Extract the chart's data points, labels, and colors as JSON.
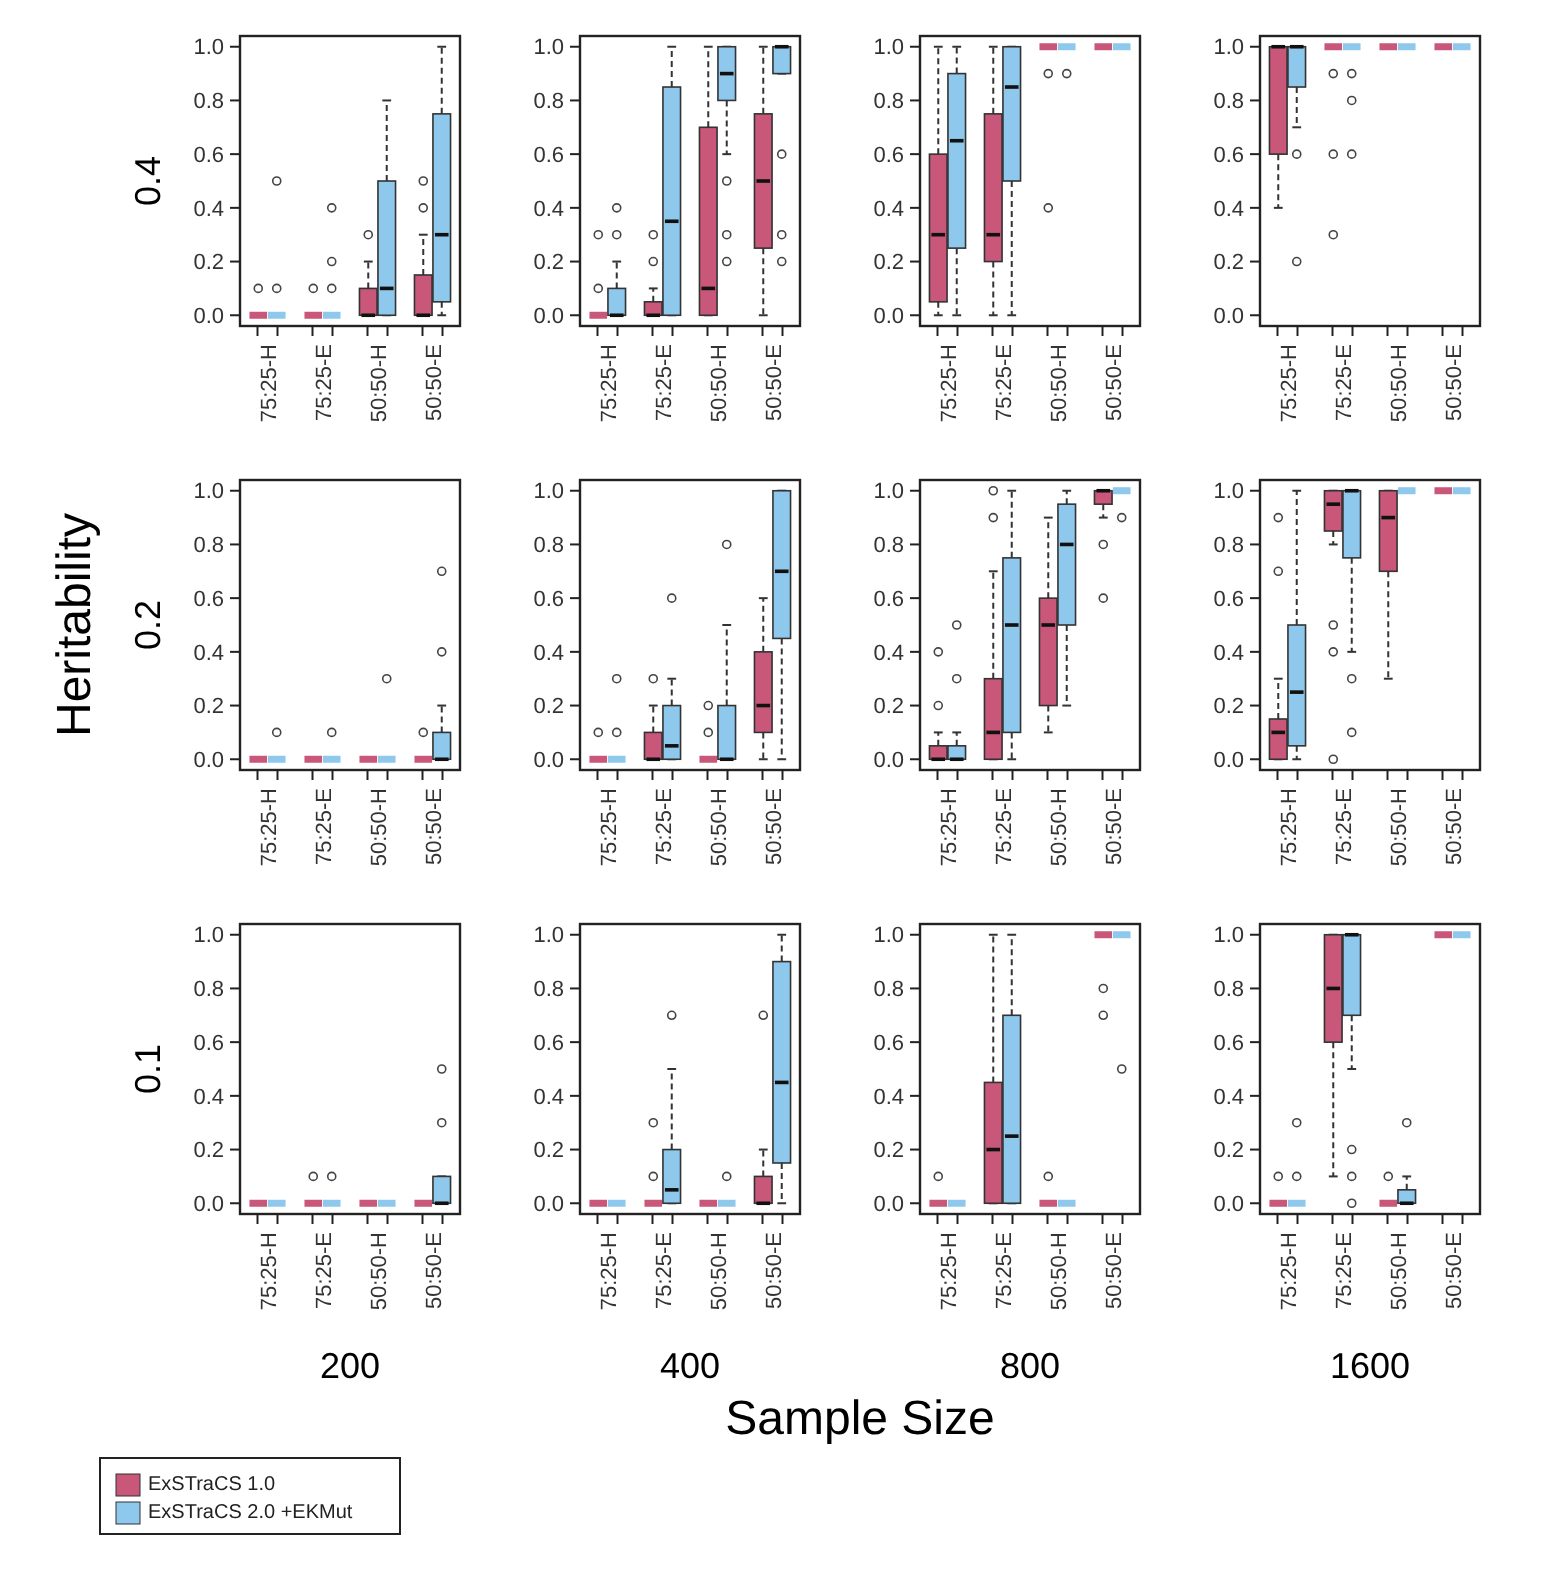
{
  "chart_data": [
    {
      "type": "box",
      "ylabel": "0.4",
      "categories": [
        "75:25-H",
        "75:25-E",
        "50:50-H",
        "50:50-E"
      ],
      "ylim": [
        -0.04,
        1.04
      ],
      "yticks": [
        {
          "value": 0,
          "label": "0.0"
        },
        {
          "value": 0.2,
          "label": "0.2"
        },
        {
          "value": 0.4,
          "label": "0.4"
        },
        {
          "value": 0.6,
          "label": "0.6"
        },
        {
          "value": 0.8,
          "label": "0.8"
        },
        {
          "value": 1,
          "label": "1.0"
        }
      ],
      "legend": false,
      "series": [
        {
          "color": "#c9577a",
          "boxes": [
            {
              "low": 0,
              "q1": 0,
              "median": 0,
              "q3": 0,
              "high": 0,
              "outliers": [
                0.1
              ]
            },
            {
              "low": 0,
              "q1": 0,
              "median": 0,
              "q3": 0,
              "high": 0,
              "outliers": [
                0.1
              ]
            },
            {
              "low": 0,
              "q1": 0,
              "median": 0,
              "q3": 0.1,
              "high": 0.2,
              "outliers": [
                0.3
              ]
            },
            {
              "low": 0,
              "q1": 0,
              "median": 0,
              "q3": 0.15,
              "high": 0.3,
              "outliers": [
                0.4,
                0.5
              ]
            }
          ]
        },
        {
          "color": "#8ec8ec",
          "boxes": [
            {
              "low": 0,
              "q1": 0,
              "median": 0,
              "q3": 0,
              "high": 0,
              "outliers": [
                0.1,
                0.5
              ]
            },
            {
              "low": 0,
              "q1": 0,
              "median": 0,
              "q3": 0,
              "high": 0,
              "outliers": [
                0.1,
                0.2,
                0.4
              ]
            },
            {
              "low": 0,
              "q1": 0,
              "median": 0.1,
              "q3": 0.5,
              "high": 0.8
            },
            {
              "low": 0,
              "q1": 0.05,
              "median": 0.3,
              "q3": 0.75,
              "high": 1.0
            }
          ]
        }
      ]
    },
    {
      "type": "box",
      "categories": [
        "75:25-H",
        "75:25-E",
        "50:50-H",
        "50:50-E"
      ],
      "ylim": [
        -0.04,
        1.04
      ],
      "yticks": [
        {
          "value": 0,
          "label": "0.0"
        },
        {
          "value": 0.2,
          "label": "0.2"
        },
        {
          "value": 0.4,
          "label": "0.4"
        },
        {
          "value": 0.6,
          "label": "0.6"
        },
        {
          "value": 0.8,
          "label": "0.8"
        },
        {
          "value": 1,
          "label": "1.0"
        }
      ],
      "legend": false,
      "series": [
        {
          "color": "#c9577a",
          "boxes": [
            {
              "low": 0,
              "q1": 0,
              "median": 0,
              "q3": 0,
              "high": 0,
              "outliers": [
                0.1,
                0.3
              ]
            },
            {
              "low": 0,
              "q1": 0,
              "median": 0,
              "q3": 0.05,
              "high": 0.1,
              "outliers": [
                0.2,
                0.3
              ]
            },
            {
              "low": 0,
              "q1": 0,
              "median": 0.1,
              "q3": 0.7,
              "high": 1.0
            },
            {
              "low": 0,
              "q1": 0.25,
              "median": 0.5,
              "q3": 0.75,
              "high": 1.0
            }
          ]
        },
        {
          "color": "#8ec8ec",
          "boxes": [
            {
              "low": 0,
              "q1": 0,
              "median": 0,
              "q3": 0.1,
              "high": 0.2,
              "outliers": [
                0.3,
                0.4
              ]
            },
            {
              "low": 0,
              "q1": 0,
              "median": 0.35,
              "q3": 0.85,
              "high": 1.0
            },
            {
              "low": 0.6,
              "q1": 0.8,
              "median": 0.9,
              "q3": 1.0,
              "high": 1.0,
              "outliers": [
                0.2,
                0.3,
                0.5
              ]
            },
            {
              "low": 0.9,
              "q1": 0.9,
              "median": 1.0,
              "q3": 1.0,
              "high": 1.0,
              "outliers": [
                0.2,
                0.3,
                0.6
              ]
            }
          ]
        }
      ]
    },
    {
      "type": "box",
      "categories": [
        "75:25-H",
        "75:25-E",
        "50:50-H",
        "50:50-E"
      ],
      "ylim": [
        -0.04,
        1.04
      ],
      "yticks": [
        {
          "value": 0,
          "label": "0.0"
        },
        {
          "value": 0.2,
          "label": "0.2"
        },
        {
          "value": 0.4,
          "label": "0.4"
        },
        {
          "value": 0.6,
          "label": "0.6"
        },
        {
          "value": 0.8,
          "label": "0.8"
        },
        {
          "value": 1,
          "label": "1.0"
        }
      ],
      "legend": false,
      "series": [
        {
          "color": "#c9577a",
          "boxes": [
            {
              "low": 0,
              "q1": 0.05,
              "median": 0.3,
              "q3": 0.6,
              "high": 1.0
            },
            {
              "low": 0,
              "q1": 0.2,
              "median": 0.3,
              "q3": 0.75,
              "high": 1.0
            },
            {
              "low": 1.0,
              "q1": 1.0,
              "median": 1.0,
              "q3": 1.0,
              "high": 1.0,
              "outliers": [
                0.4,
                0.9
              ]
            },
            {
              "low": 1.0,
              "q1": 1.0,
              "median": 1.0,
              "q3": 1.0,
              "high": 1.0
            }
          ]
        },
        {
          "color": "#8ec8ec",
          "boxes": [
            {
              "low": 0,
              "q1": 0.25,
              "median": 0.65,
              "q3": 0.9,
              "high": 1.0
            },
            {
              "low": 0,
              "q1": 0.5,
              "median": 0.85,
              "q3": 1.0,
              "high": 1.0
            },
            {
              "low": 1.0,
              "q1": 1.0,
              "median": 1.0,
              "q3": 1.0,
              "high": 1.0,
              "outliers": [
                0.9
              ]
            },
            {
              "low": 1.0,
              "q1": 1.0,
              "median": 1.0,
              "q3": 1.0,
              "high": 1.0
            }
          ]
        }
      ]
    },
    {
      "type": "box",
      "categories": [
        "75:25-H",
        "75:25-E",
        "50:50-H",
        "50:50-E"
      ],
      "ylim": [
        -0.04,
        1.04
      ],
      "yticks": [
        {
          "value": 0,
          "label": "0.0"
        },
        {
          "value": 0.2,
          "label": "0.2"
        },
        {
          "value": 0.4,
          "label": "0.4"
        },
        {
          "value": 0.6,
          "label": "0.6"
        },
        {
          "value": 0.8,
          "label": "0.8"
        },
        {
          "value": 1,
          "label": "1.0"
        }
      ],
      "legend": false,
      "series": [
        {
          "color": "#c9577a",
          "boxes": [
            {
              "low": 0.4,
              "q1": 0.6,
              "median": 1.0,
              "q3": 1.0,
              "high": 1.0
            },
            {
              "low": 1.0,
              "q1": 1.0,
              "median": 1.0,
              "q3": 1.0,
              "high": 1.0,
              "outliers": [
                0.3,
                0.6,
                0.9
              ]
            },
            {
              "low": 1.0,
              "q1": 1.0,
              "median": 1.0,
              "q3": 1.0,
              "high": 1.0
            },
            {
              "low": 1.0,
              "q1": 1.0,
              "median": 1.0,
              "q3": 1.0,
              "high": 1.0
            }
          ]
        },
        {
          "color": "#8ec8ec",
          "boxes": [
            {
              "low": 0.7,
              "q1": 0.85,
              "median": 1.0,
              "q3": 1.0,
              "high": 1.0,
              "outliers": [
                0.2,
                0.6
              ]
            },
            {
              "low": 1.0,
              "q1": 1.0,
              "median": 1.0,
              "q3": 1.0,
              "high": 1.0,
              "outliers": [
                0.6,
                0.8,
                0.9
              ]
            },
            {
              "low": 1.0,
              "q1": 1.0,
              "median": 1.0,
              "q3": 1.0,
              "high": 1.0
            },
            {
              "low": 1.0,
              "q1": 1.0,
              "median": 1.0,
              "q3": 1.0,
              "high": 1.0
            }
          ]
        }
      ]
    },
    {
      "type": "box",
      "ylabel": "0.2",
      "annotations": [
        "Heritability"
      ],
      "categories": [
        "75:25-H",
        "75:25-E",
        "50:50-H",
        "50:50-E"
      ],
      "ylim": [
        -0.04,
        1.04
      ],
      "yticks": [
        {
          "value": 0,
          "label": "0.0"
        },
        {
          "value": 0.2,
          "label": "0.2"
        },
        {
          "value": 0.4,
          "label": "0.4"
        },
        {
          "value": 0.6,
          "label": "0.6"
        },
        {
          "value": 0.8,
          "label": "0.8"
        },
        {
          "value": 1,
          "label": "1.0"
        }
      ],
      "legend": false,
      "series": [
        {
          "color": "#c9577a",
          "boxes": [
            {
              "low": 0,
              "q1": 0,
              "median": 0,
              "q3": 0,
              "high": 0
            },
            {
              "low": 0,
              "q1": 0,
              "median": 0,
              "q3": 0,
              "high": 0
            },
            {
              "low": 0,
              "q1": 0,
              "median": 0,
              "q3": 0,
              "high": 0
            },
            {
              "low": 0,
              "q1": 0,
              "median": 0,
              "q3": 0,
              "high": 0,
              "outliers": [
                0.1
              ]
            }
          ]
        },
        {
          "color": "#8ec8ec",
          "boxes": [
            {
              "low": 0,
              "q1": 0,
              "median": 0,
              "q3": 0,
              "high": 0,
              "outliers": [
                0.1
              ]
            },
            {
              "low": 0,
              "q1": 0,
              "median": 0,
              "q3": 0,
              "high": 0,
              "outliers": [
                0.1
              ]
            },
            {
              "low": 0,
              "q1": 0,
              "median": 0,
              "q3": 0,
              "high": 0,
              "outliers": [
                0.3
              ]
            },
            {
              "low": 0,
              "q1": 0,
              "median": 0,
              "q3": 0.1,
              "high": 0.2,
              "outliers": [
                0.4,
                0.7
              ]
            }
          ]
        }
      ]
    },
    {
      "type": "box",
      "categories": [
        "75:25-H",
        "75:25-E",
        "50:50-H",
        "50:50-E"
      ],
      "ylim": [
        -0.04,
        1.04
      ],
      "yticks": [
        {
          "value": 0,
          "label": "0.0"
        },
        {
          "value": 0.2,
          "label": "0.2"
        },
        {
          "value": 0.4,
          "label": "0.4"
        },
        {
          "value": 0.6,
          "label": "0.6"
        },
        {
          "value": 0.8,
          "label": "0.8"
        },
        {
          "value": 1,
          "label": "1.0"
        }
      ],
      "legend": false,
      "series": [
        {
          "color": "#c9577a",
          "boxes": [
            {
              "low": 0,
              "q1": 0,
              "median": 0,
              "q3": 0,
              "high": 0,
              "outliers": [
                0.1
              ]
            },
            {
              "low": 0,
              "q1": 0,
              "median": 0,
              "q3": 0.1,
              "high": 0.2,
              "outliers": [
                0.3
              ]
            },
            {
              "low": 0,
              "q1": 0,
              "median": 0,
              "q3": 0,
              "high": 0,
              "outliers": [
                0.1,
                0.2
              ]
            },
            {
              "low": 0,
              "q1": 0.1,
              "median": 0.2,
              "q3": 0.4,
              "high": 0.6
            }
          ]
        },
        {
          "color": "#8ec8ec",
          "boxes": [
            {
              "low": 0,
              "q1": 0,
              "median": 0,
              "q3": 0,
              "high": 0,
              "outliers": [
                0.1,
                0.3
              ]
            },
            {
              "low": 0,
              "q1": 0,
              "median": 0.05,
              "q3": 0.2,
              "high": 0.3,
              "outliers": [
                0.6
              ]
            },
            {
              "low": 0,
              "q1": 0,
              "median": 0,
              "q3": 0.2,
              "high": 0.5,
              "outliers": [
                0.8
              ]
            },
            {
              "low": 0,
              "q1": 0.45,
              "median": 0.7,
              "q3": 1.0,
              "high": 1.0
            }
          ]
        }
      ]
    },
    {
      "type": "box",
      "categories": [
        "75:25-H",
        "75:25-E",
        "50:50-H",
        "50:50-E"
      ],
      "ylim": [
        -0.04,
        1.04
      ],
      "yticks": [
        {
          "value": 0,
          "label": "0.0"
        },
        {
          "value": 0.2,
          "label": "0.2"
        },
        {
          "value": 0.4,
          "label": "0.4"
        },
        {
          "value": 0.6,
          "label": "0.6"
        },
        {
          "value": 0.8,
          "label": "0.8"
        },
        {
          "value": 1,
          "label": "1.0"
        }
      ],
      "legend": false,
      "series": [
        {
          "color": "#c9577a",
          "boxes": [
            {
              "low": 0,
              "q1": 0,
              "median": 0,
              "q3": 0.05,
              "high": 0.1,
              "outliers": [
                0.2,
                0.4
              ]
            },
            {
              "low": 0,
              "q1": 0,
              "median": 0.1,
              "q3": 0.3,
              "high": 0.7,
              "outliers": [
                0.9,
                1.0
              ]
            },
            {
              "low": 0.1,
              "q1": 0.2,
              "median": 0.5,
              "q3": 0.6,
              "high": 0.9
            },
            {
              "low": 0.9,
              "q1": 0.95,
              "median": 1.0,
              "q3": 1.0,
              "high": 1.0,
              "outliers": [
                0.6,
                0.8
              ]
            }
          ]
        },
        {
          "color": "#8ec8ec",
          "boxes": [
            {
              "low": 0,
              "q1": 0,
              "median": 0,
              "q3": 0.05,
              "high": 0.1,
              "outliers": [
                0.3,
                0.5
              ]
            },
            {
              "low": 0,
              "q1": 0.1,
              "median": 0.5,
              "q3": 0.75,
              "high": 1.0
            },
            {
              "low": 0.2,
              "q1": 0.5,
              "median": 0.8,
              "q3": 0.95,
              "high": 1.0
            },
            {
              "low": 1.0,
              "q1": 1.0,
              "median": 1.0,
              "q3": 1.0,
              "high": 1.0,
              "outliers": [
                0.9
              ]
            }
          ]
        }
      ]
    },
    {
      "type": "box",
      "categories": [
        "75:25-H",
        "75:25-E",
        "50:50-H",
        "50:50-E"
      ],
      "ylim": [
        -0.04,
        1.04
      ],
      "yticks": [
        {
          "value": 0,
          "label": "0.0"
        },
        {
          "value": 0.2,
          "label": "0.2"
        },
        {
          "value": 0.4,
          "label": "0.4"
        },
        {
          "value": 0.6,
          "label": "0.6"
        },
        {
          "value": 0.8,
          "label": "0.8"
        },
        {
          "value": 1,
          "label": "1.0"
        }
      ],
      "legend": false,
      "series": [
        {
          "color": "#c9577a",
          "boxes": [
            {
              "low": 0,
              "q1": 0,
              "median": 0.1,
              "q3": 0.15,
              "high": 0.3,
              "outliers": [
                0.7,
                0.9
              ]
            },
            {
              "low": 0.8,
              "q1": 0.85,
              "median": 0.95,
              "q3": 1.0,
              "high": 1.0,
              "outliers": [
                0,
                0.4,
                0.5
              ]
            },
            {
              "low": 0.3,
              "q1": 0.7,
              "median": 0.9,
              "q3": 1.0,
              "high": 1.0
            },
            {
              "low": 1.0,
              "q1": 1.0,
              "median": 1.0,
              "q3": 1.0,
              "high": 1.0
            }
          ]
        },
        {
          "color": "#8ec8ec",
          "boxes": [
            {
              "low": 0,
              "q1": 0.05,
              "median": 0.25,
              "q3": 0.5,
              "high": 1.0
            },
            {
              "low": 0.4,
              "q1": 0.75,
              "median": 1.0,
              "q3": 1.0,
              "high": 1.0,
              "outliers": [
                0.1,
                0.3
              ]
            },
            {
              "low": 1.0,
              "q1": 1.0,
              "median": 1.0,
              "q3": 1.0,
              "high": 1.0
            },
            {
              "low": 1.0,
              "q1": 1.0,
              "median": 1.0,
              "q3": 1.0,
              "high": 1.0
            }
          ]
        }
      ]
    },
    {
      "type": "box",
      "ylabel": "0.1",
      "xlabel": "200",
      "categories": [
        "75:25-H",
        "75:25-E",
        "50:50-H",
        "50:50-E"
      ],
      "ylim": [
        -0.04,
        1.04
      ],
      "yticks": [
        {
          "value": 0,
          "label": "0.0"
        },
        {
          "value": 0.2,
          "label": "0.2"
        },
        {
          "value": 0.4,
          "label": "0.4"
        },
        {
          "value": 0.6,
          "label": "0.6"
        },
        {
          "value": 0.8,
          "label": "0.8"
        },
        {
          "value": 1,
          "label": "1.0"
        }
      ],
      "legend": "bottom left",
      "series": [
        {
          "name": "ExSTraCS 1.0",
          "color": "#c9577a",
          "boxes": [
            {
              "low": 0,
              "q1": 0,
              "median": 0,
              "q3": 0,
              "high": 0
            },
            {
              "low": 0,
              "q1": 0,
              "median": 0,
              "q3": 0,
              "high": 0,
              "outliers": [
                0.1
              ]
            },
            {
              "low": 0,
              "q1": 0,
              "median": 0,
              "q3": 0,
              "high": 0
            },
            {
              "low": 0,
              "q1": 0,
              "median": 0,
              "q3": 0,
              "high": 0
            }
          ]
        },
        {
          "name": "ExSTraCS 2.0 +EKMut",
          "color": "#8ec8ec",
          "boxes": [
            {
              "low": 0,
              "q1": 0,
              "median": 0,
              "q3": 0,
              "high": 0
            },
            {
              "low": 0,
              "q1": 0,
              "median": 0,
              "q3": 0,
              "high": 0,
              "outliers": [
                0.1
              ]
            },
            {
              "low": 0,
              "q1": 0,
              "median": 0,
              "q3": 0,
              "high": 0
            },
            {
              "low": 0,
              "q1": 0,
              "median": 0,
              "q3": 0.1,
              "high": 0.1,
              "outliers": [
                0.3,
                0.5
              ]
            }
          ]
        }
      ]
    },
    {
      "type": "box",
      "xlabel": "400",
      "annotations": [
        "Sample Size"
      ],
      "categories": [
        "75:25-H",
        "75:25-E",
        "50:50-H",
        "50:50-E"
      ],
      "ylim": [
        -0.04,
        1.04
      ],
      "yticks": [
        {
          "value": 0,
          "label": "0.0"
        },
        {
          "value": 0.2,
          "label": "0.2"
        },
        {
          "value": 0.4,
          "label": "0.4"
        },
        {
          "value": 0.6,
          "label": "0.6"
        },
        {
          "value": 0.8,
          "label": "0.8"
        },
        {
          "value": 1,
          "label": "1.0"
        }
      ],
      "legend": false,
      "series": [
        {
          "color": "#c9577a",
          "boxes": [
            {
              "low": 0,
              "q1": 0,
              "median": 0,
              "q3": 0,
              "high": 0
            },
            {
              "low": 0,
              "q1": 0,
              "median": 0,
              "q3": 0,
              "high": 0,
              "outliers": [
                0.1,
                0.3
              ]
            },
            {
              "low": 0,
              "q1": 0,
              "median": 0,
              "q3": 0,
              "high": 0
            },
            {
              "low": 0,
              "q1": 0,
              "median": 0,
              "q3": 0.1,
              "high": 0.2,
              "outliers": [
                0.7
              ]
            }
          ]
        },
        {
          "color": "#8ec8ec",
          "boxes": [
            {
              "low": 0,
              "q1": 0,
              "median": 0,
              "q3": 0,
              "high": 0
            },
            {
              "low": 0,
              "q1": 0,
              "median": 0.05,
              "q3": 0.2,
              "high": 0.5,
              "outliers": [
                0.7
              ]
            },
            {
              "low": 0,
              "q1": 0,
              "median": 0,
              "q3": 0,
              "high": 0,
              "outliers": [
                0.1
              ]
            },
            {
              "low": 0,
              "q1": 0.15,
              "median": 0.45,
              "q3": 0.9,
              "high": 1.0
            }
          ]
        }
      ]
    },
    {
      "type": "box",
      "xlabel": "800",
      "categories": [
        "75:25-H",
        "75:25-E",
        "50:50-H",
        "50:50-E"
      ],
      "ylim": [
        -0.04,
        1.04
      ],
      "yticks": [
        {
          "value": 0,
          "label": "0.0"
        },
        {
          "value": 0.2,
          "label": "0.2"
        },
        {
          "value": 0.4,
          "label": "0.4"
        },
        {
          "value": 0.6,
          "label": "0.6"
        },
        {
          "value": 0.8,
          "label": "0.8"
        },
        {
          "value": 1,
          "label": "1.0"
        }
      ],
      "legend": false,
      "series": [
        {
          "color": "#c9577a",
          "boxes": [
            {
              "low": 0,
              "q1": 0,
              "median": 0,
              "q3": 0,
              "high": 0,
              "outliers": [
                0.1
              ]
            },
            {
              "low": 0,
              "q1": 0,
              "median": 0.2,
              "q3": 0.45,
              "high": 1.0
            },
            {
              "low": 0,
              "q1": 0,
              "median": 0,
              "q3": 0,
              "high": 0,
              "outliers": [
                0.1
              ]
            },
            {
              "low": 1.0,
              "q1": 1.0,
              "median": 1.0,
              "q3": 1.0,
              "high": 1.0,
              "outliers": [
                0.7,
                0.8
              ]
            }
          ]
        },
        {
          "color": "#8ec8ec",
          "boxes": [
            {
              "low": 0,
              "q1": 0,
              "median": 0,
              "q3": 0,
              "high": 0
            },
            {
              "low": 0,
              "q1": 0,
              "median": 0.25,
              "q3": 0.7,
              "high": 1.0
            },
            {
              "low": 0,
              "q1": 0,
              "median": 0,
              "q3": 0,
              "high": 0
            },
            {
              "low": 1.0,
              "q1": 1.0,
              "median": 1.0,
              "q3": 1.0,
              "high": 1.0,
              "outliers": [
                0.5
              ]
            }
          ]
        }
      ]
    },
    {
      "type": "box",
      "xlabel": "1600",
      "categories": [
        "75:25-H",
        "75:25-E",
        "50:50-H",
        "50:50-E"
      ],
      "ylim": [
        -0.04,
        1.04
      ],
      "yticks": [
        {
          "value": 0,
          "label": "0.0"
        },
        {
          "value": 0.2,
          "label": "0.2"
        },
        {
          "value": 0.4,
          "label": "0.4"
        },
        {
          "value": 0.6,
          "label": "0.6"
        },
        {
          "value": 0.8,
          "label": "0.8"
        },
        {
          "value": 1,
          "label": "1.0"
        }
      ],
      "legend": false,
      "series": [
        {
          "color": "#c9577a",
          "boxes": [
            {
              "low": 0,
              "q1": 0,
              "median": 0,
              "q3": 0,
              "high": 0,
              "outliers": [
                0.1
              ]
            },
            {
              "low": 0.1,
              "q1": 0.6,
              "median": 0.8,
              "q3": 1.0,
              "high": 1.0
            },
            {
              "low": 0,
              "q1": 0,
              "median": 0,
              "q3": 0,
              "high": 0,
              "outliers": [
                0.1
              ]
            },
            {
              "low": 1.0,
              "q1": 1.0,
              "median": 1.0,
              "q3": 1.0,
              "high": 1.0
            }
          ]
        },
        {
          "color": "#8ec8ec",
          "boxes": [
            {
              "low": 0,
              "q1": 0,
              "median": 0,
              "q3": 0,
              "high": 0,
              "outliers": [
                0.1,
                0.3
              ]
            },
            {
              "low": 0.5,
              "q1": 0.7,
              "median": 1.0,
              "q3": 1.0,
              "high": 1.0,
              "outliers": [
                0,
                0.1,
                0.2
              ]
            },
            {
              "low": 0,
              "q1": 0,
              "median": 0,
              "q3": 0.05,
              "high": 0.1,
              "outliers": [
                0.3
              ]
            },
            {
              "low": 1.0,
              "q1": 1.0,
              "median": 1.0,
              "q3": 1.0,
              "high": 1.0
            }
          ]
        }
      ]
    }
  ]
}
